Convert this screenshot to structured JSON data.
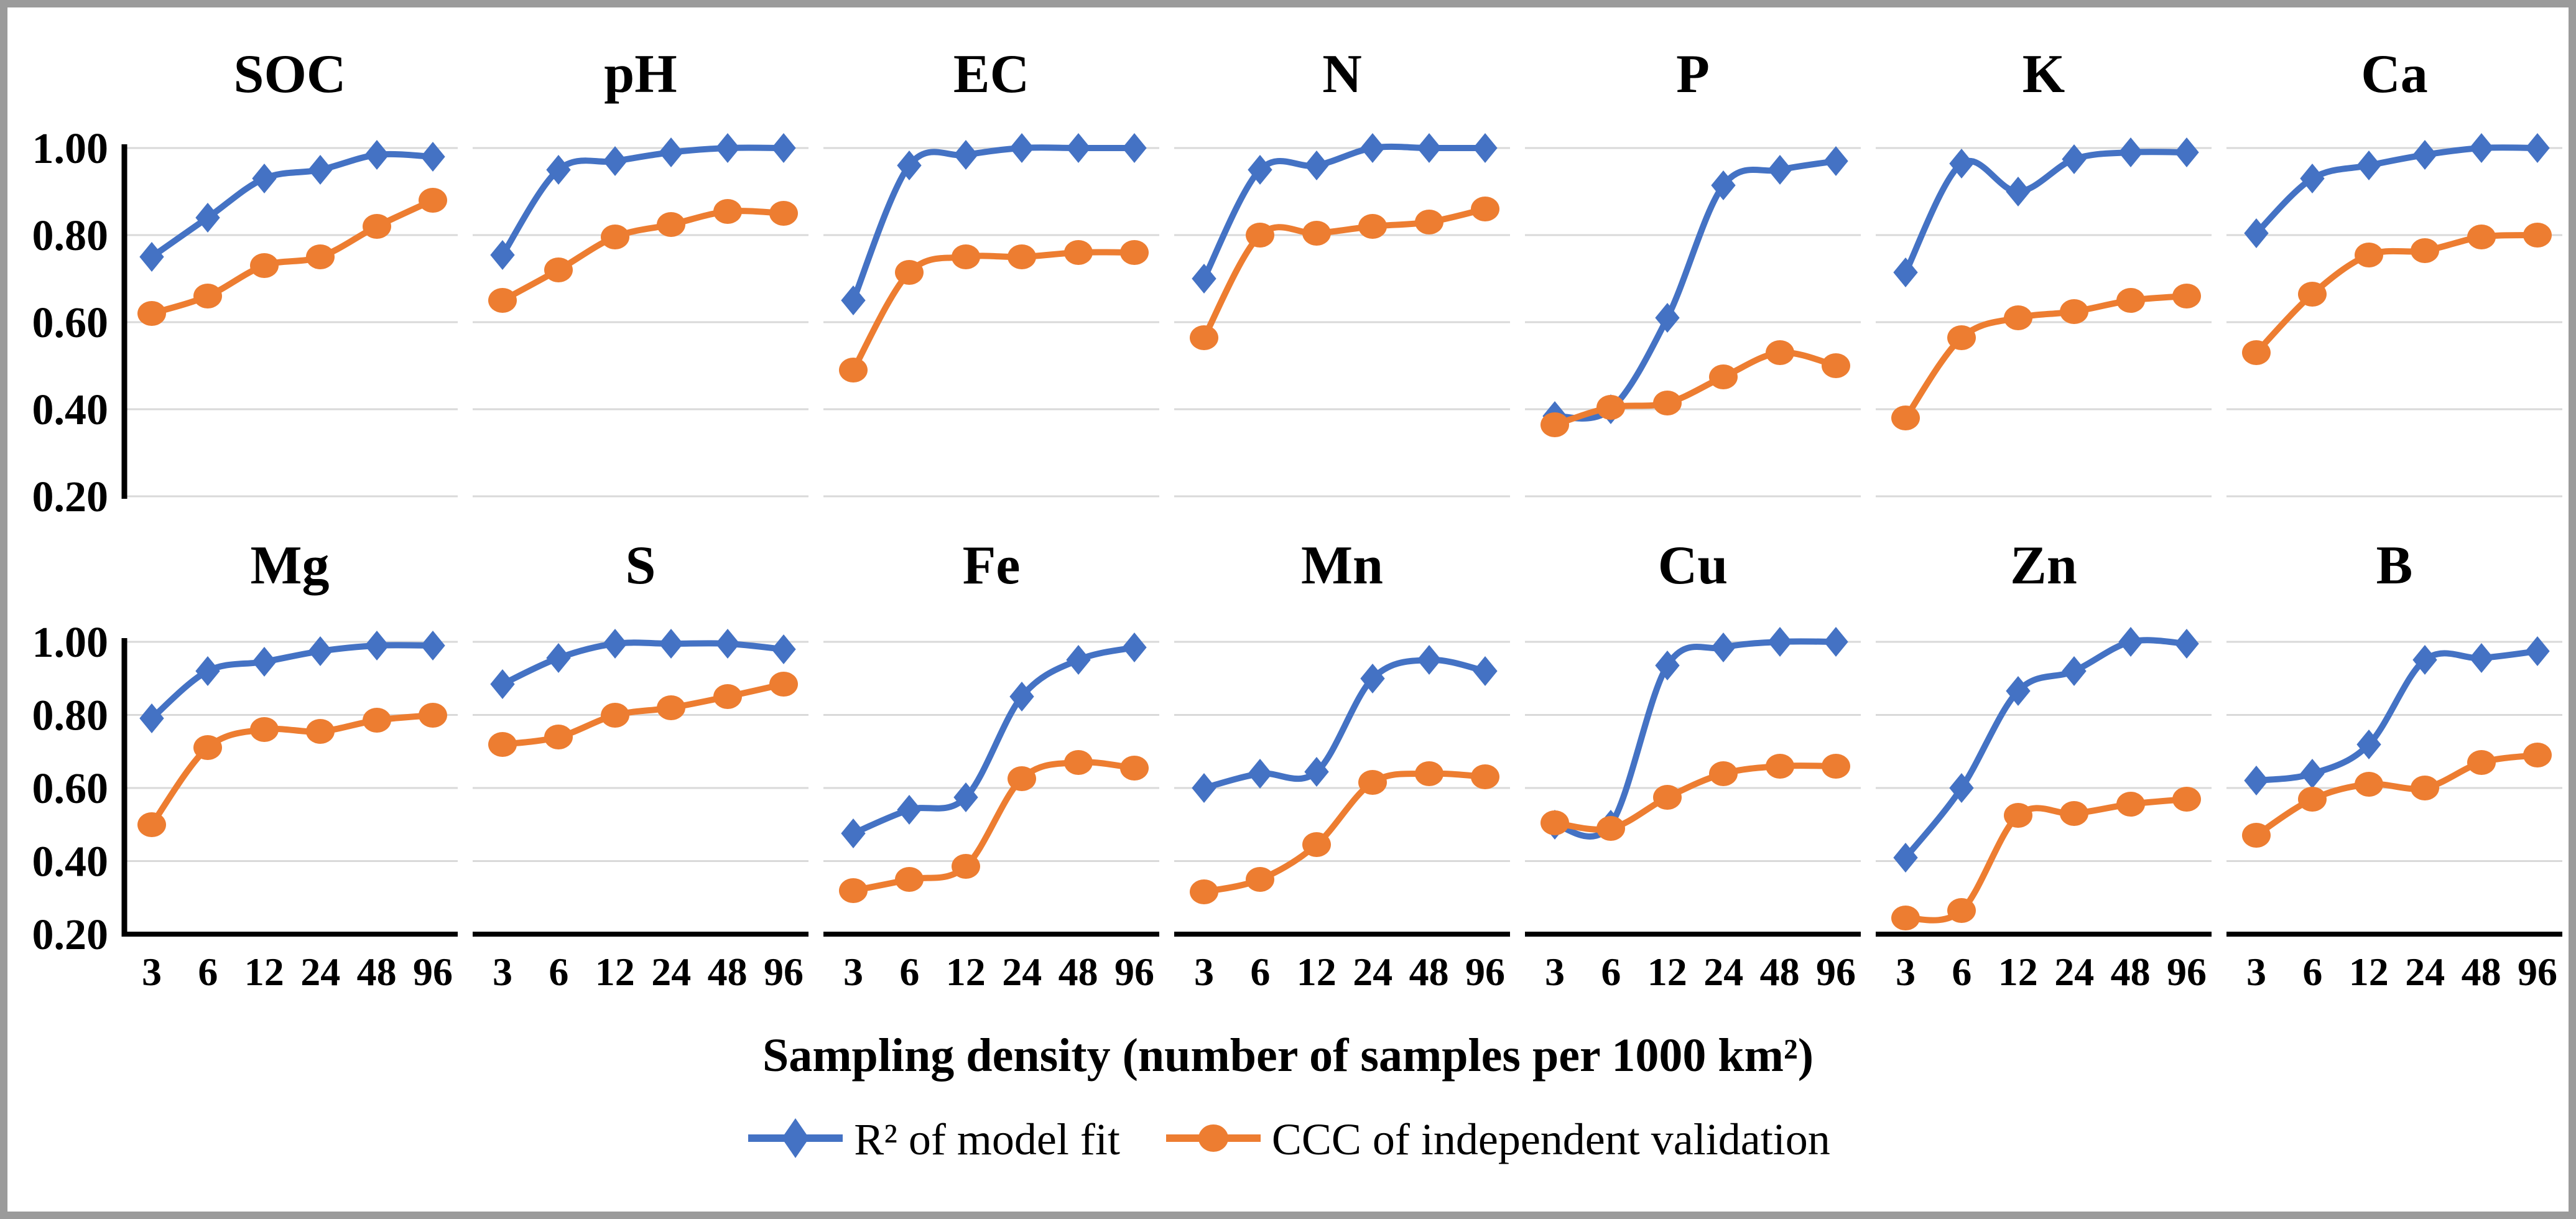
{
  "figure": {
    "x_axis_label": "Sampling density (number of samples per 1000 km²)",
    "y_tick_labels": [
      "1.00",
      "0.80",
      "0.60",
      "0.40",
      "0.20"
    ],
    "x_tick_labels": [
      "3",
      "6",
      "12",
      "24",
      "48",
      "96"
    ]
  },
  "legend": {
    "items": [
      {
        "label": "R² of model fit",
        "series": "r2",
        "marker": "diamond-icon",
        "color": "#4472C4"
      },
      {
        "label": "CCC of independent validation",
        "series": "ccc",
        "marker": "circle-icon",
        "color": "#ED7D31"
      }
    ]
  },
  "colors": {
    "r2_line": "#4472C4",
    "ccc_line": "#ED7D31",
    "gridline": "#D9D9D9",
    "axis": "#000000",
    "frame_border": "#9B9B9B",
    "background": "#FFFFFF",
    "text": "#000000"
  },
  "chart_data": {
    "type": "line",
    "x": [
      3,
      6,
      12,
      24,
      48,
      96
    ],
    "xlabel": "Sampling density (number of samples per 1000 km²)",
    "ylim": [
      0.2,
      1.0
    ],
    "y_ticks": [
      1.0,
      0.8,
      0.6,
      0.4,
      0.2
    ],
    "grid": true,
    "legend_position": "bottom",
    "panels": [
      {
        "title": "SOC",
        "series": [
          {
            "name": "R² of model fit",
            "values": [
              0.75,
              0.84,
              0.93,
              0.95,
              0.985,
              0.98
            ]
          },
          {
            "name": "CCC of independent validation",
            "values": [
              0.62,
              0.66,
              0.73,
              0.75,
              0.82,
              0.88
            ]
          }
        ]
      },
      {
        "title": "pH",
        "series": [
          {
            "name": "R² of model fit",
            "values": [
              0.755,
              0.95,
              0.97,
              0.99,
              1.0,
              1.0
            ]
          },
          {
            "name": "CCC of independent validation",
            "values": [
              0.65,
              0.72,
              0.795,
              0.825,
              0.855,
              0.85
            ]
          }
        ]
      },
      {
        "title": "EC",
        "series": [
          {
            "name": "R² of model fit",
            "values": [
              0.65,
              0.96,
              0.985,
              1.0,
              1.0,
              1.0
            ]
          },
          {
            "name": "CCC of independent validation",
            "values": [
              0.49,
              0.715,
              0.75,
              0.75,
              0.76,
              0.76
            ]
          }
        ]
      },
      {
        "title": "N",
        "series": [
          {
            "name": "R² of model fit",
            "values": [
              0.7,
              0.95,
              0.96,
              1.0,
              1.0,
              1.0
            ]
          },
          {
            "name": "CCC of independent validation",
            "values": [
              0.565,
              0.8,
              0.805,
              0.82,
              0.83,
              0.86
            ]
          }
        ]
      },
      {
        "title": "P",
        "series": [
          {
            "name": "R² of model fit",
            "values": [
              0.385,
              0.4,
              0.61,
              0.915,
              0.95,
              0.97
            ]
          },
          {
            "name": "CCC of independent validation",
            "values": [
              0.365,
              0.405,
              0.415,
              0.475,
              0.53,
              0.5
            ]
          }
        ]
      },
      {
        "title": "K",
        "series": [
          {
            "name": "R² of model fit",
            "values": [
              0.715,
              0.965,
              0.9,
              0.975,
              0.99,
              0.99
            ]
          },
          {
            "name": "CCC of independent validation",
            "values": [
              0.38,
              0.565,
              0.61,
              0.625,
              0.65,
              0.66
            ]
          }
        ]
      },
      {
        "title": "Ca",
        "series": [
          {
            "name": "R² of model fit",
            "values": [
              0.805,
              0.93,
              0.96,
              0.985,
              1.0,
              1.0
            ]
          },
          {
            "name": "CCC of independent validation",
            "values": [
              0.53,
              0.665,
              0.755,
              0.765,
              0.795,
              0.8
            ]
          }
        ]
      },
      {
        "title": "Mg",
        "series": [
          {
            "name": "R² of model fit",
            "values": [
              0.79,
              0.92,
              0.945,
              0.975,
              0.99,
              0.99
            ]
          },
          {
            "name": "CCC of independent validation",
            "values": [
              0.5,
              0.71,
              0.76,
              0.755,
              0.785,
              0.8
            ]
          }
        ]
      },
      {
        "title": "S",
        "series": [
          {
            "name": "R² of model fit",
            "values": [
              0.885,
              0.955,
              0.995,
              0.995,
              0.995,
              0.98
            ]
          },
          {
            "name": "CCC of independent validation",
            "values": [
              0.72,
              0.74,
              0.8,
              0.82,
              0.85,
              0.885
            ]
          }
        ]
      },
      {
        "title": "Fe",
        "series": [
          {
            "name": "R² of model fit",
            "values": [
              0.475,
              0.54,
              0.575,
              0.85,
              0.95,
              0.985
            ]
          },
          {
            "name": "CCC of independent validation",
            "values": [
              0.32,
              0.35,
              0.385,
              0.625,
              0.67,
              0.655
            ]
          }
        ]
      },
      {
        "title": "Mn",
        "series": [
          {
            "name": "R² of model fit",
            "values": [
              0.6,
              0.64,
              0.645,
              0.9,
              0.95,
              0.92
            ]
          },
          {
            "name": "CCC of independent validation",
            "values": [
              0.315,
              0.35,
              0.445,
              0.615,
              0.64,
              0.63
            ]
          }
        ]
      },
      {
        "title": "Cu",
        "series": [
          {
            "name": "R² of model fit",
            "values": [
              0.5,
              0.5,
              0.935,
              0.985,
              1.0,
              1.0
            ]
          },
          {
            "name": "CCC of independent validation",
            "values": [
              0.505,
              0.49,
              0.575,
              0.64,
              0.66,
              0.66
            ]
          }
        ]
      },
      {
        "title": "Zn",
        "series": [
          {
            "name": "R² of model fit",
            "values": [
              0.41,
              0.6,
              0.865,
              0.92,
              1.0,
              0.995
            ]
          },
          {
            "name": "CCC of independent validation",
            "values": [
              0.245,
              0.265,
              0.525,
              0.53,
              0.555,
              0.57
            ]
          }
        ]
      },
      {
        "title": "B",
        "series": [
          {
            "name": "R² of model fit",
            "values": [
              0.62,
              0.64,
              0.72,
              0.95,
              0.955,
              0.975
            ]
          },
          {
            "name": "CCC of independent validation",
            "values": [
              0.47,
              0.57,
              0.61,
              0.6,
              0.67,
              0.69
            ]
          }
        ]
      }
    ]
  }
}
